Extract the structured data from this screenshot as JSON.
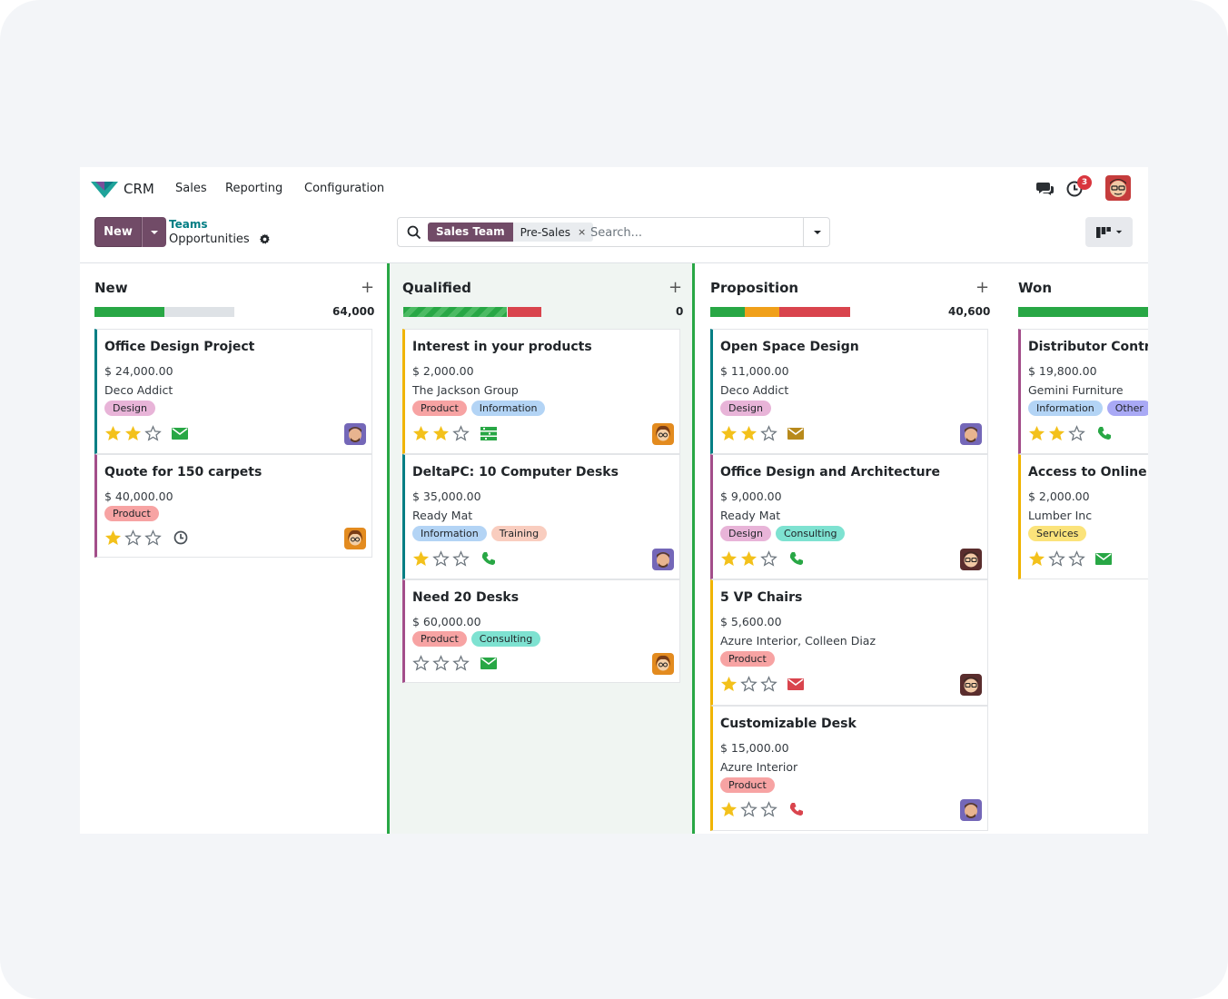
{
  "app": {
    "name": "CRM"
  },
  "menu": [
    "Sales",
    "Reporting",
    "Configuration"
  ],
  "notifications": {
    "activity_count": "3"
  },
  "control": {
    "new_label": "New",
    "breadcrumb_parent": "Teams",
    "breadcrumb_current": "Opportunities"
  },
  "search": {
    "facet_label": "Sales Team",
    "facet_value": "Pre-Sales",
    "facet_close": "×",
    "placeholder": "Search..."
  },
  "columns": [
    {
      "title": "New",
      "total": "64,000"
    },
    {
      "title": "Qualified",
      "total": "0"
    },
    {
      "title": "Proposition",
      "total": "40,600"
    },
    {
      "title": "Won",
      "total": ""
    }
  ],
  "cards": [
    {
      "title": "Office Design Project",
      "amount": "$ 24,000.00",
      "partner": "Deco Addict",
      "tags": [
        "Design"
      ],
      "stars": 2,
      "activity": "email-icon"
    },
    {
      "title": "Quote for 150 carpets",
      "amount": "$ 40,000.00",
      "partner": "",
      "tags": [
        "Product"
      ],
      "stars": 1,
      "activity": "clock-icon"
    },
    {
      "title": "Interest in your products",
      "amount": "$ 2,000.00",
      "partner": "The Jackson Group",
      "tags": [
        "Product",
        "Information"
      ],
      "stars": 2,
      "activity": "task-list-icon"
    },
    {
      "title": "DeltaPC: 10 Computer Desks",
      "amount": "$ 35,000.00",
      "partner": "Ready Mat",
      "tags": [
        "Information",
        "Training"
      ],
      "stars": 1,
      "activity": "phone-icon"
    },
    {
      "title": "Need 20 Desks",
      "amount": "$ 60,000.00",
      "partner": "",
      "tags": [
        "Product",
        "Consulting"
      ],
      "stars": 0,
      "activity": "email-icon"
    },
    {
      "title": "Open Space Design",
      "amount": "$ 11,000.00",
      "partner": "Deco Addict",
      "tags": [
        "Design"
      ],
      "stars": 2,
      "activity": "email-icon"
    },
    {
      "title": "Office Design and Architecture",
      "amount": "$ 9,000.00",
      "partner": "Ready Mat",
      "tags": [
        "Design",
        "Consulting"
      ],
      "stars": 2,
      "activity": "phone-icon"
    },
    {
      "title": "5 VP Chairs",
      "amount": "$ 5,600.00",
      "partner": "Azure Interior, Colleen Diaz",
      "tags": [
        "Product"
      ],
      "stars": 1,
      "activity": "email-icon"
    },
    {
      "title": "Customizable Desk",
      "amount": "$ 15,000.00",
      "partner": "Azure Interior",
      "tags": [
        "Product"
      ],
      "stars": 1,
      "activity": "phone-icon"
    },
    {
      "title": "Distributor Contra",
      "amount": "$ 19,800.00",
      "partner": "Gemini Furniture",
      "tags": [
        "Information",
        "Other"
      ],
      "stars": 2,
      "activity": "phone-icon"
    },
    {
      "title": "Access to Online C",
      "amount": "$ 2,000.00",
      "partner": "Lumber Inc",
      "tags": [
        "Services"
      ],
      "stars": 1,
      "activity": "email-icon"
    }
  ],
  "colors": {
    "brand": "#714b67",
    "teal": "#017e84",
    "green": "#28a745",
    "red": "#d9444d",
    "orange": "#f0a01a",
    "star": "#f3c11b",
    "tag_design": "#e8b4d8",
    "tag_product": "#f7a3a3",
    "tag_information": "#b3d4f5",
    "tag_training": "#f9cdbf",
    "tag_consulting": "#7ee2d1",
    "tag_other": "#a9a9f5",
    "tag_services": "#fbe37a"
  }
}
